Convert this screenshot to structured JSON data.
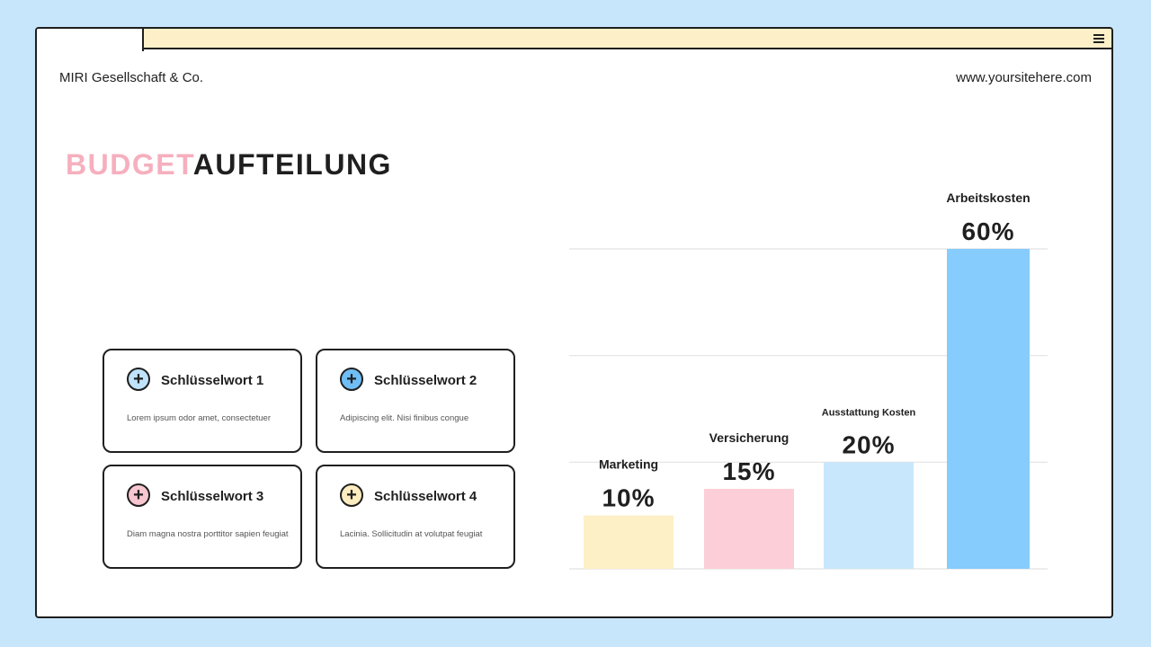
{
  "header": {
    "company": "MIRI Gesellschaft & Co.",
    "website": "www.yoursitehere.com"
  },
  "title": {
    "accent": "BUDGET",
    "main": "AUFTEILUNG"
  },
  "cards": [
    {
      "title": "Schlüsselwort 1",
      "desc": "Lorem ipsum odor amet, consectetuer",
      "icon": "plus-circle-icon",
      "color": "#bfe3fa"
    },
    {
      "title": "Schlüsselwort 2",
      "desc": "Adipiscing elit. Nisi finibus congue",
      "icon": "plus-circle-icon",
      "color": "#6fbef5"
    },
    {
      "title": "Schlüsselwort 3",
      "desc": "Diam magna nostra porttitor sapien feugiat",
      "icon": "plus-circle-icon",
      "color": "#f8c6d0"
    },
    {
      "title": "Schlüsselwort 4",
      "desc": "Lacinia. Sollicitudin at volutpat feugiat",
      "icon": "plus-circle-icon",
      "color": "#fdecbf"
    }
  ],
  "chart_data": {
    "type": "bar",
    "categories": [
      "Marketing",
      "Versicherung",
      "Ausstattung Kosten",
      "Arbeitskosten"
    ],
    "values": [
      10,
      15,
      20,
      60
    ],
    "value_labels": [
      "10%",
      "15%",
      "20%",
      "60%"
    ],
    "colors": [
      "#fdefc6",
      "#fcced7",
      "#c8e7fc",
      "#86ccfd"
    ],
    "ylim": [
      0,
      60
    ],
    "grid": true
  }
}
